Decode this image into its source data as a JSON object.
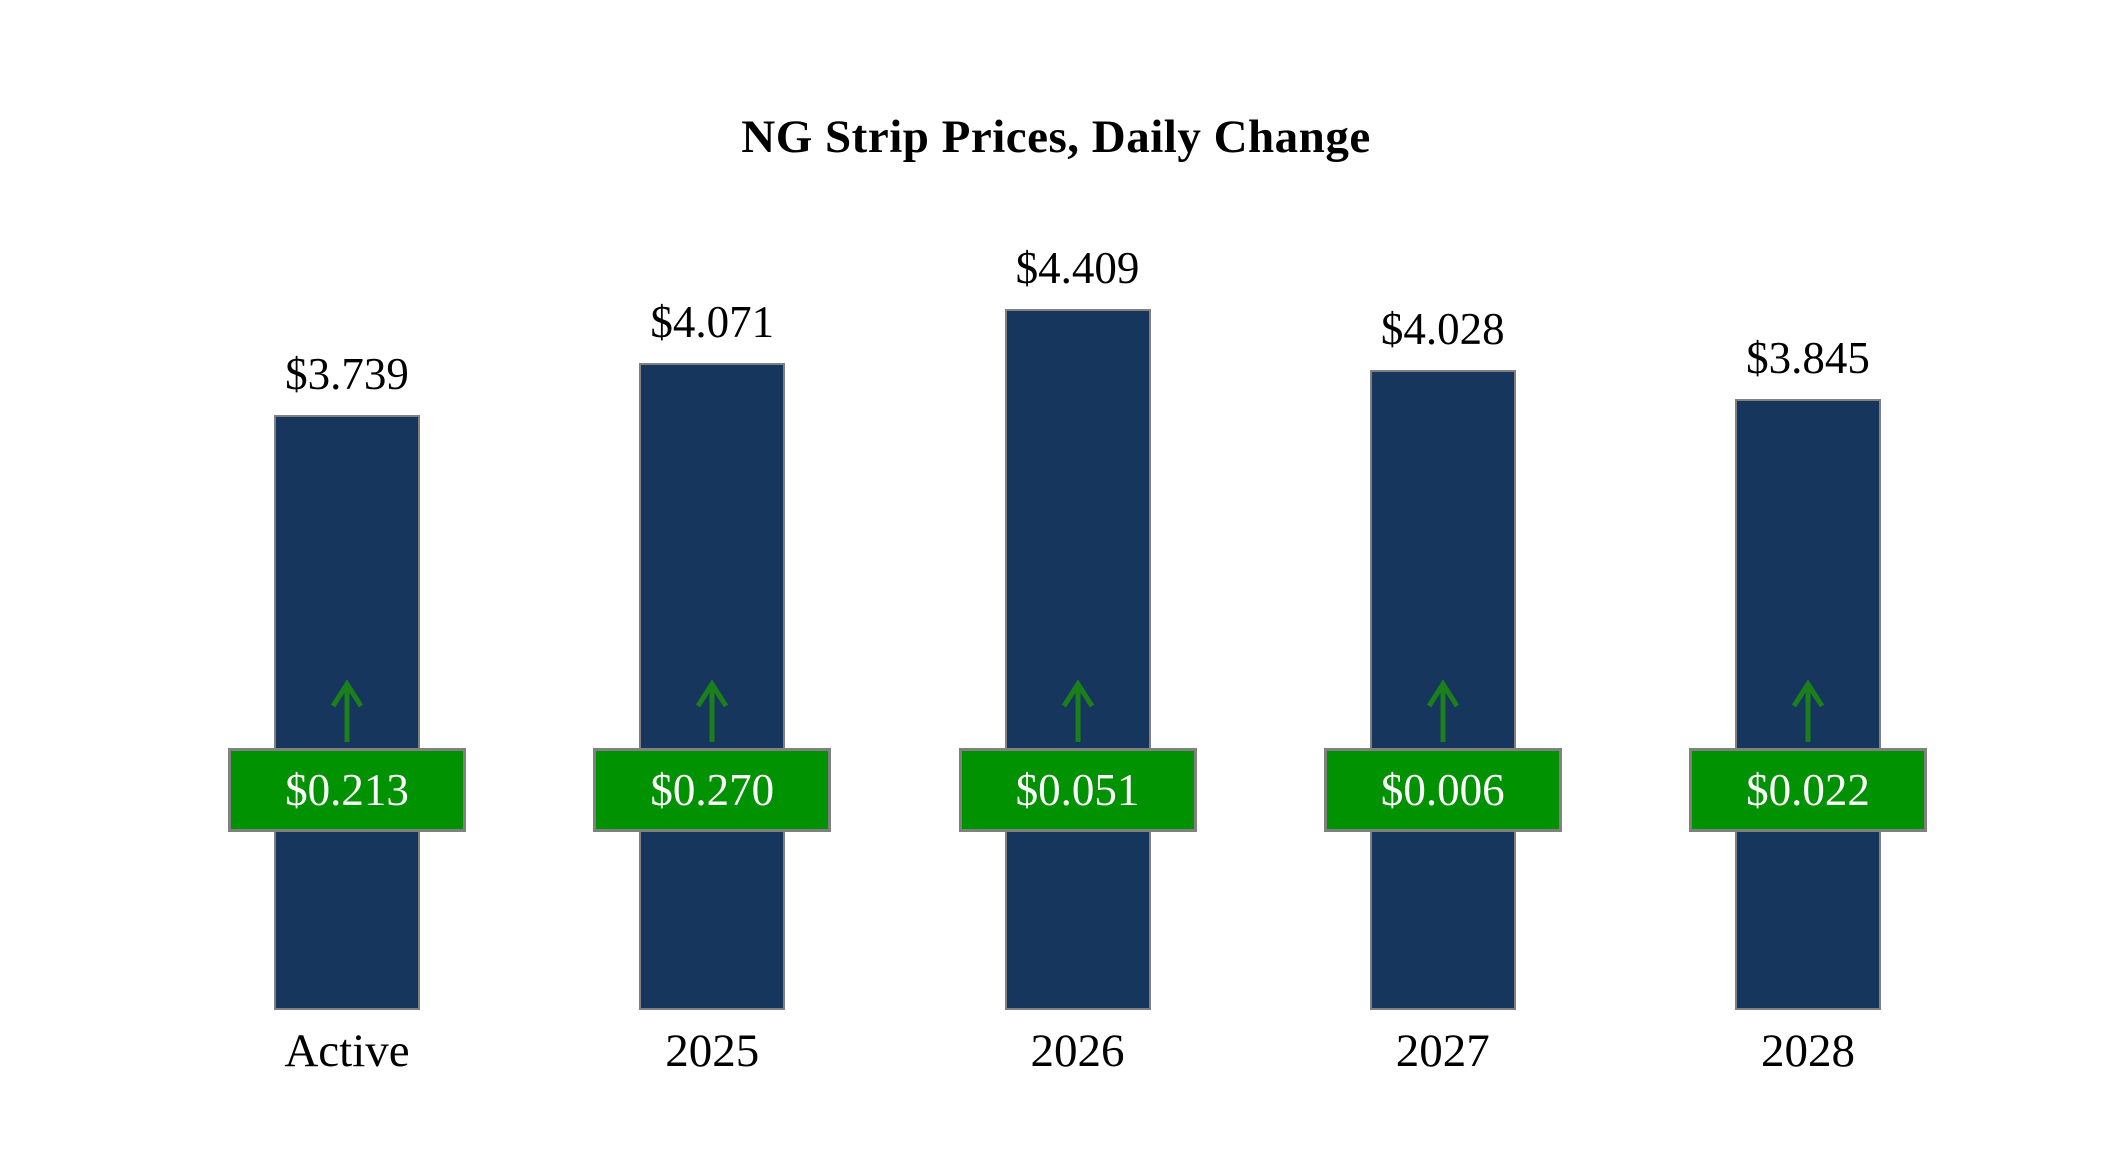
{
  "chart_data": {
    "type": "bar",
    "title": "NG Strip Prices, Daily Change",
    "categories": [
      "Active",
      "2025",
      "2026",
      "2027",
      "2028"
    ],
    "series": [
      {
        "name": "Strip Price ($)",
        "values": [
          3.739,
          4.071,
          4.409,
          4.028,
          3.845
        ]
      },
      {
        "name": "Daily Change ($)",
        "values": [
          0.213,
          0.27,
          0.051,
          0.006,
          0.022
        ]
      }
    ],
    "bars": [
      {
        "category": "Active",
        "price_label": "$3.739",
        "change_label": "$0.213",
        "change_direction": "up"
      },
      {
        "category": "2025",
        "price_label": "$4.071",
        "change_label": "$0.270",
        "change_direction": "up"
      },
      {
        "category": "2026",
        "price_label": "$4.409",
        "change_label": "$0.051",
        "change_direction": "up"
      },
      {
        "category": "2027",
        "price_label": "$4.028",
        "change_label": "$0.006",
        "change_direction": "up"
      },
      {
        "category": "2028",
        "price_label": "$3.845",
        "change_label": "$0.022",
        "change_direction": "up"
      }
    ],
    "ylim": [
      0,
      4.409
    ],
    "grid": false,
    "legend": "none",
    "colors": {
      "bar_fill": "#17365D",
      "bar_border": "#808080",
      "change_badge_fill": "#009200",
      "change_badge_border": "#808080",
      "change_badge_text": "#FFFFFF",
      "arrow": "#1B7F1B",
      "background": "#FFFFFF",
      "text": "#000000"
    }
  }
}
